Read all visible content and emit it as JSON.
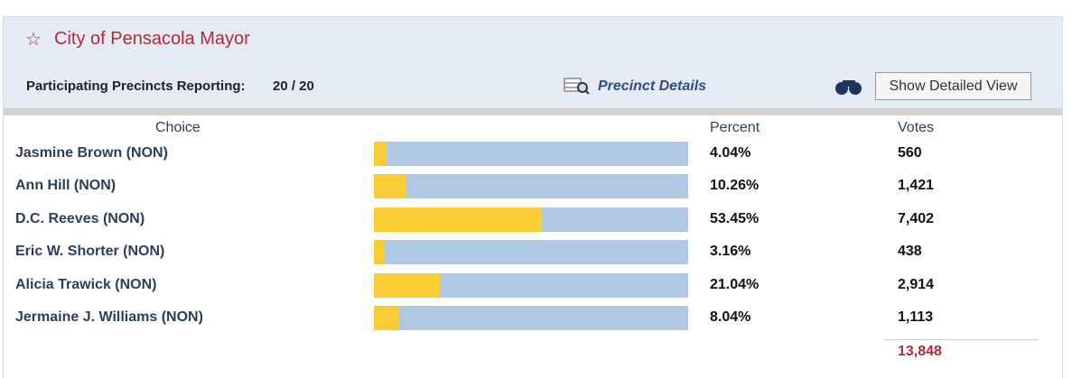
{
  "header": {
    "title": "City of Pensacola Mayor",
    "precincts_label": "Participating Precincts Reporting:",
    "precincts_value": "20 / 20",
    "precinct_details": "Precinct Details",
    "button": "Show Detailed View"
  },
  "table": {
    "columns": [
      "Choice",
      "Percent",
      "Votes"
    ],
    "rows": [
      {
        "choice": "Jasmine Brown (NON)",
        "percent": 4.04,
        "percent_label": "4.04%",
        "votes": "560"
      },
      {
        "choice": "Ann Hill (NON)",
        "percent": 10.26,
        "percent_label": "10.26%",
        "votes": "1,421"
      },
      {
        "choice": "D.C. Reeves (NON)",
        "percent": 53.45,
        "percent_label": "53.45%",
        "votes": "7,402"
      },
      {
        "choice": "Eric W. Shorter (NON)",
        "percent": 3.16,
        "percent_label": "3.16%",
        "votes": "438"
      },
      {
        "choice": "Alicia Trawick (NON)",
        "percent": 21.04,
        "percent_label": "21.04%",
        "votes": "2,914"
      },
      {
        "choice": "Jermaine J. Williams (NON)",
        "percent": 8.04,
        "percent_label": "8.04%",
        "votes": "1,113"
      }
    ],
    "total": "13,848"
  }
}
